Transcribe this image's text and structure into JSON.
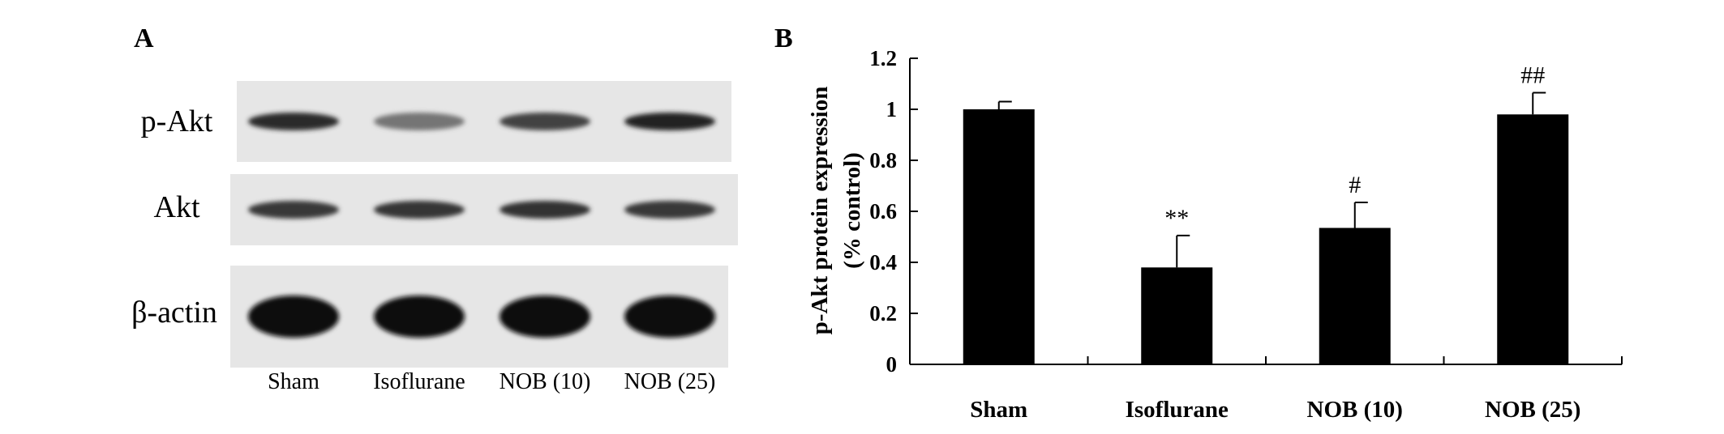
{
  "panel_a": {
    "label": "A",
    "rows": [
      {
        "name": "p-Akt",
        "intensity": [
          0.85,
          0.45,
          0.72,
          0.9
        ]
      },
      {
        "name": "Akt",
        "intensity": [
          0.78,
          0.8,
          0.82,
          0.78
        ]
      },
      {
        "name": "β-actin",
        "intensity": [
          1.0,
          1.0,
          1.0,
          1.0
        ]
      }
    ],
    "lanes": [
      "Sham",
      "Isoflurane",
      "NOB (10)",
      "NOB (25)"
    ]
  },
  "panel_b": {
    "label": "B"
  },
  "chart_data": {
    "type": "bar",
    "categories": [
      "Sham",
      "Isoflurane",
      "NOB (10)",
      "NOB (25)"
    ],
    "values": [
      1.0,
      0.38,
      0.535,
      0.98
    ],
    "errors": [
      0.03,
      0.125,
      0.1,
      0.085
    ],
    "annotations": [
      "",
      "**",
      "#",
      "##"
    ],
    "ylabel": [
      "p-Akt protein expression",
      "(% control)"
    ],
    "ylim": [
      0,
      1.2
    ],
    "yticks": [
      "0",
      "0.2",
      "0.4",
      "0.6",
      "0.8",
      "1",
      "1.2"
    ],
    "bar_color": "#000000",
    "grid": false
  }
}
